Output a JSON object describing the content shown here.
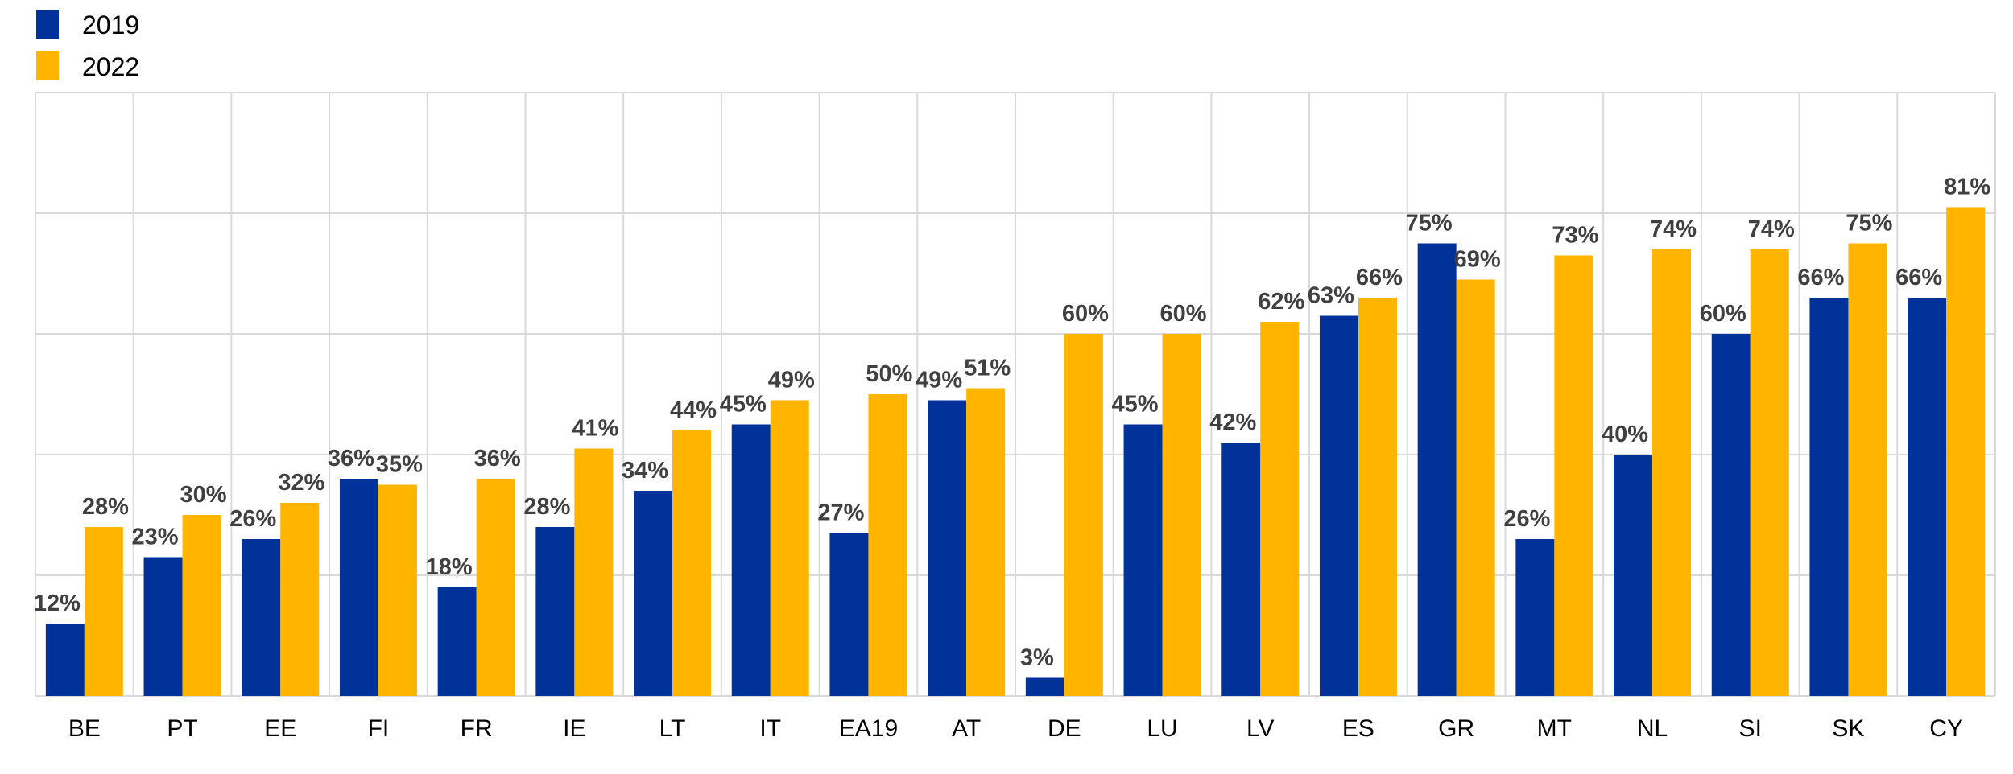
{
  "chart_data": {
    "type": "bar",
    "title": "",
    "xlabel": "",
    "ylabel": "",
    "ylim": [
      0,
      100
    ],
    "grid": true,
    "legend_position": "top-left",
    "categories": [
      "BE",
      "PT",
      "EE",
      "FI",
      "FR",
      "IE",
      "LT",
      "IT",
      "EA19",
      "AT",
      "DE",
      "LU",
      "LV",
      "ES",
      "GR",
      "MT",
      "NL",
      "SI",
      "SK",
      "CY"
    ],
    "series": [
      {
        "name": "2019",
        "color": "#003299",
        "values": [
          12,
          23,
          26,
          36,
          18,
          28,
          34,
          45,
          27,
          49,
          3,
          45,
          42,
          63,
          75,
          26,
          40,
          60,
          66,
          66
        ]
      },
      {
        "name": "2022",
        "color": "#FFB400",
        "values": [
          28,
          30,
          32,
          35,
          36,
          41,
          44,
          49,
          50,
          51,
          60,
          60,
          62,
          66,
          69,
          73,
          74,
          74,
          75,
          81
        ]
      }
    ],
    "value_suffix": "%"
  }
}
